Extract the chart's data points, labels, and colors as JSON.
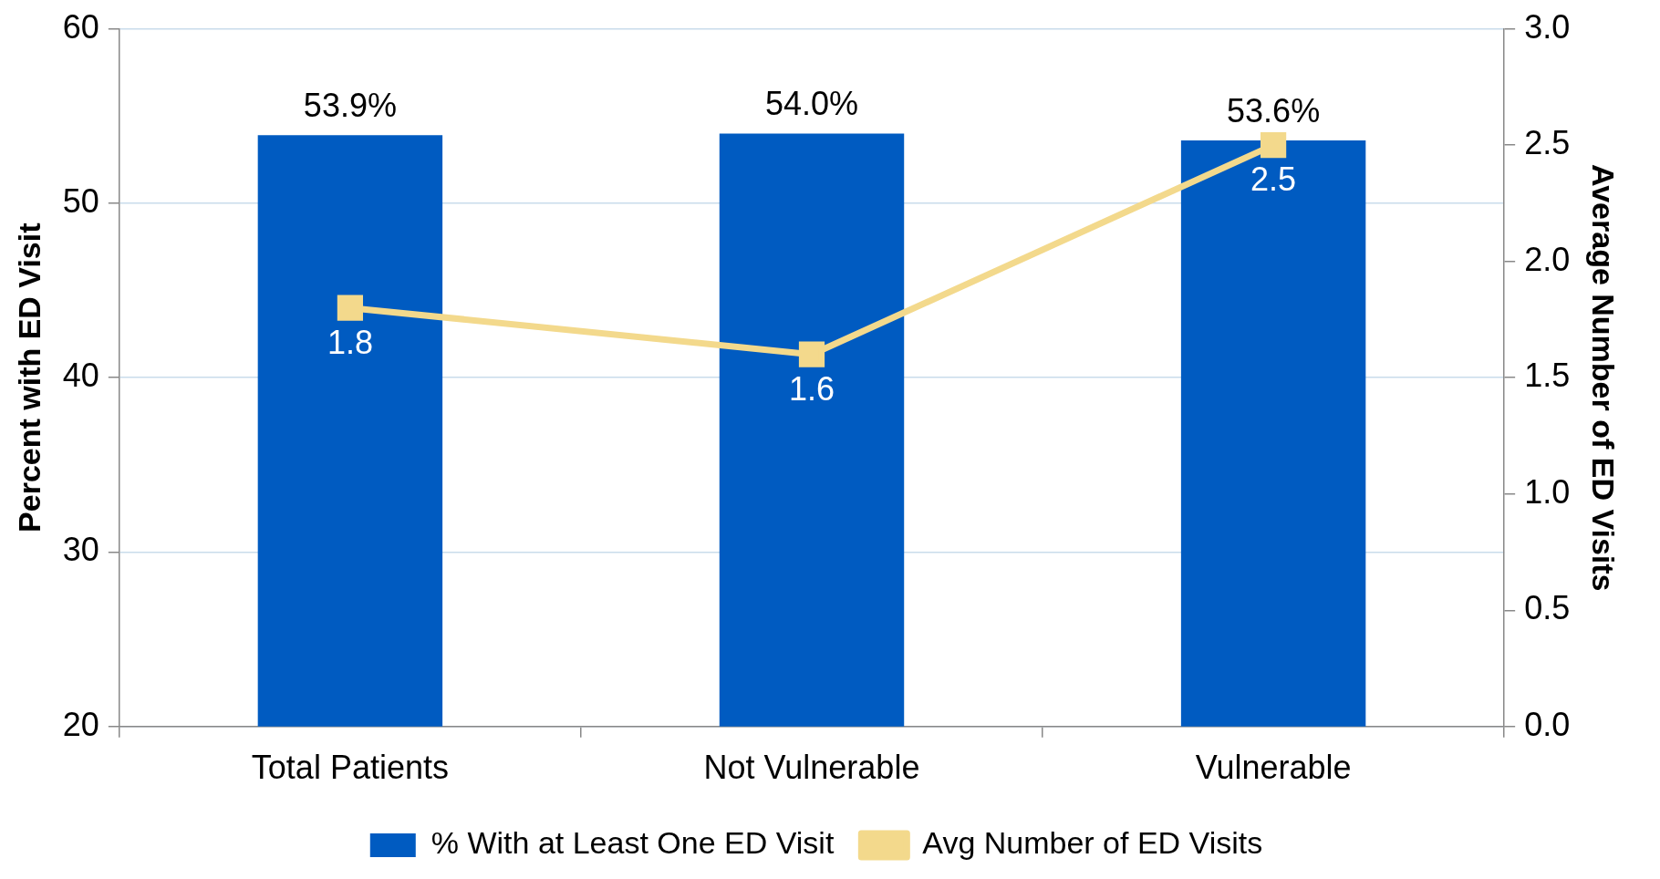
{
  "chart_data": {
    "type": "bar",
    "categories": [
      "Total Patients",
      "Not Vulnerable",
      "Vulnerable"
    ],
    "ylabel": "Percent with ED Visit",
    "y2label": "Average Number of ED Visits",
    "series": [
      {
        "name": "% With at Least One ED Visit",
        "color": "#005bc1",
        "values": [
          53.9,
          54.0,
          53.6
        ],
        "value_labels": [
          "53.9%",
          "54.0%",
          "53.6%"
        ]
      },
      {
        "name": "Avg Number of ED Visits",
        "type": "line",
        "axis": "y2",
        "color": "#f3d98c",
        "values": [
          1.8,
          1.6,
          2.5
        ]
      }
    ],
    "ylim": [
      20,
      60
    ],
    "yticks": [
      20,
      30,
      40,
      50,
      60
    ],
    "y2lim": [
      0,
      3
    ],
    "y2ticks": [
      {
        "value": 0,
        "label": "0.0"
      },
      {
        "value": 0.5,
        "label": "0.5"
      },
      {
        "value": 1,
        "label": "1.0"
      },
      {
        "value": 1.5,
        "label": "1.5"
      },
      {
        "value": 2,
        "label": "2.0"
      },
      {
        "value": 2.5,
        "label": "2.5"
      },
      {
        "value": 3,
        "label": "3.0"
      }
    ],
    "data_labels": true,
    "grid": "y",
    "legend": "bottom",
    "marker": "square"
  }
}
